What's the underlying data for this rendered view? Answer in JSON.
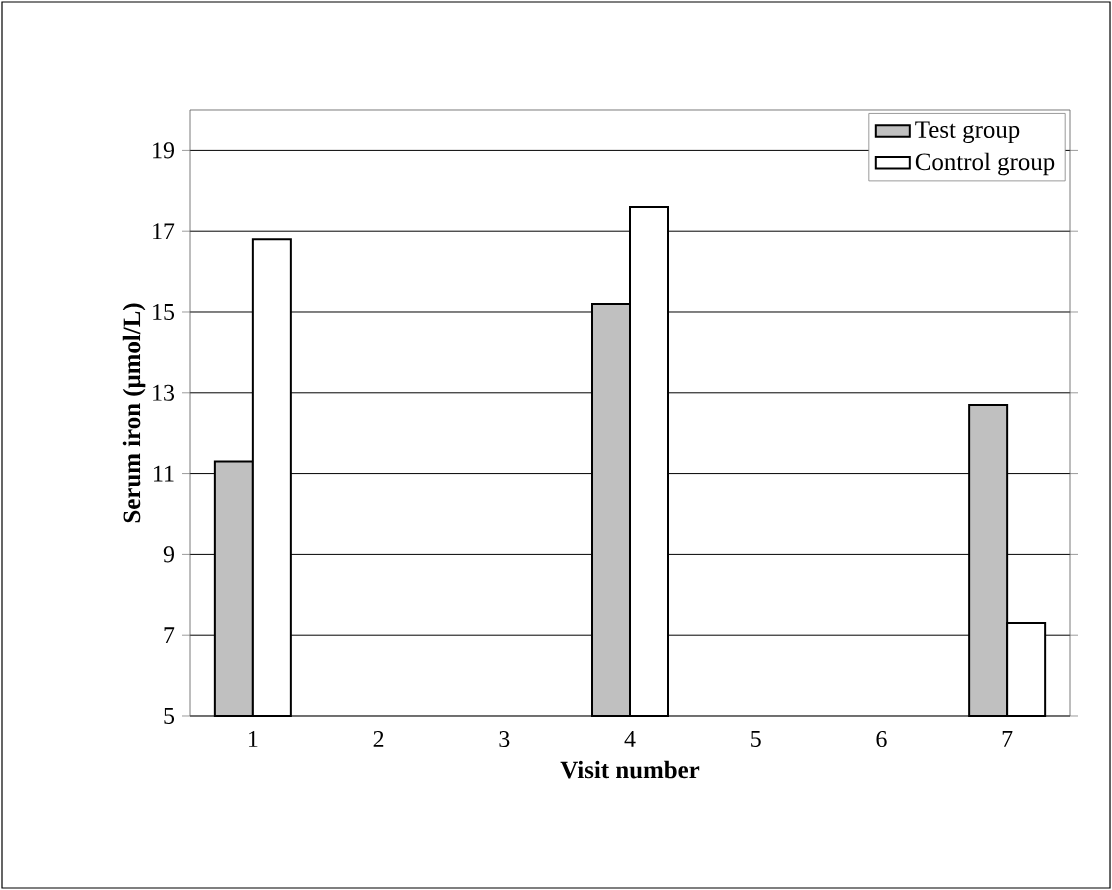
{
  "chart_data": {
    "type": "bar",
    "xlabel": "Visit number",
    "ylabel": "Serum iron (μmol/L)",
    "categories": [
      "1",
      "2",
      "3",
      "4",
      "5",
      "6",
      "7"
    ],
    "series": [
      {
        "name": "Test group",
        "color": "#c0c0c0",
        "values": [
          11.3,
          null,
          null,
          15.2,
          null,
          null,
          12.7
        ]
      },
      {
        "name": "Control group",
        "color": "#ffffff",
        "values": [
          16.8,
          null,
          null,
          17.6,
          null,
          null,
          7.3
        ]
      }
    ],
    "ylim": [
      5,
      20
    ],
    "yticks": [
      5,
      7,
      9,
      11,
      13,
      15,
      17,
      19
    ],
    "grid": "y",
    "legend": "top right"
  }
}
